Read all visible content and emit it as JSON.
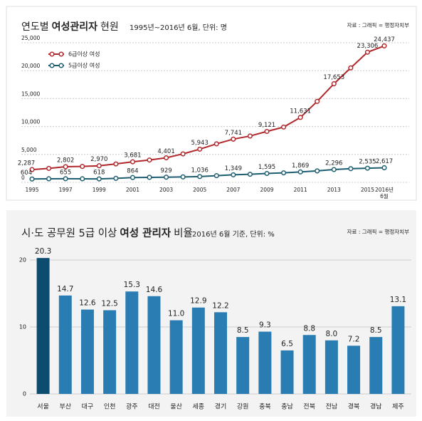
{
  "chart_data": [
    {
      "type": "line",
      "title": [
        "연도별",
        "여성관리자",
        "현원"
      ],
      "title_bold": [
        false,
        true,
        false
      ],
      "subtitle": "1995년~2016년 6월, 단위: 명",
      "source": "자료 : 그래픽 = 행정자치부",
      "categories": [
        "1995",
        null,
        "1997",
        null,
        "1999",
        null,
        "2001",
        null,
        "2003",
        null,
        "2005",
        null,
        "2007",
        null,
        "2009",
        null,
        "2011",
        null,
        "2013",
        null,
        "2015",
        "2016년 6월"
      ],
      "series": [
        {
          "name": "6급이상 여성",
          "color": "#b0282c",
          "values": [
            2287,
            2500,
            2802,
            2850,
            2970,
            3300,
            3681,
            4000,
            4401,
            5100,
            5943,
            6900,
            7741,
            8300,
            9121,
            9900,
            11631,
            14500,
            17653,
            20500,
            23306,
            24437
          ],
          "value_labels": [
            "2,287",
            null,
            "2,802",
            null,
            "2,970",
            null,
            "3,681",
            null,
            "4,401",
            null,
            "5,943",
            null,
            "7,741",
            null,
            "9,121",
            null,
            "11,631",
            null,
            "17,653",
            null,
            "23,306",
            "24,437"
          ]
        },
        {
          "name": "5급이상 여성",
          "color": "#1d5d70",
          "values": [
            604,
            640,
            655,
            640,
            618,
            720,
            864,
            900,
            929,
            980,
            1036,
            1200,
            1349,
            1450,
            1595,
            1700,
            1869,
            2050,
            2296,
            2450,
            2535,
            2617
          ],
          "value_labels": [
            "604",
            null,
            "655",
            null,
            "618",
            null,
            "864",
            null,
            "929",
            null,
            "1,036",
            null,
            "1,349",
            null,
            "1,595",
            null,
            "1,869",
            null,
            "2,296",
            null,
            "2,535",
            "2,617"
          ]
        }
      ],
      "ylim": [
        0,
        25000
      ],
      "yticks": [
        0,
        {
          "value": 5000,
          "label": "5,000"
        },
        {
          "value": 10000,
          "label": "10,000"
        },
        {
          "value": 15000,
          "label": "15,000"
        },
        {
          "value": 20000,
          "label": "20,000"
        },
        {
          "value": 25000,
          "label": "25,000"
        }
      ],
      "grid": true
    },
    {
      "type": "bar",
      "title": [
        "시·도 공무원 5급 이상",
        "여성 관리자",
        "비율"
      ],
      "title_bold": [
        false,
        true,
        false
      ],
      "subtitle": "2016년 6월 기준, 단위: %",
      "source": "자료 : 그래픽 = 행정자치부",
      "categories": [
        "서울",
        "부산",
        "대구",
        "인천",
        "광주",
        "대전",
        "울산",
        "세종",
        "경기",
        "강원",
        "충북",
        "충남",
        "전북",
        "전남",
        "경북",
        "경남",
        "제주"
      ],
      "values": [
        20.3,
        14.7,
        12.6,
        12.5,
        15.3,
        14.6,
        11.0,
        12.9,
        12.2,
        8.5,
        9.3,
        6.5,
        8.8,
        8.0,
        7.2,
        8.5,
        13.1
      ],
      "value_labels": [
        "20.3",
        "14.7",
        "12.6",
        "12.5",
        "15.3",
        "14.6",
        "11.0",
        "12.9",
        "12.2",
        "8.5",
        "9.3",
        "6.5",
        "8.8",
        "8.0",
        "7.2",
        "8.5",
        "13.1"
      ],
      "colors": [
        "#0d4c6e",
        "#2a7db3",
        "#2a7db3",
        "#2a7db3",
        "#2a7db3",
        "#2a7db3",
        "#2a7db3",
        "#2a7db3",
        "#2a7db3",
        "#2a7db3",
        "#2a7db3",
        "#2a7db3",
        "#2a7db3",
        "#2a7db3",
        "#2a7db3",
        "#2a7db3",
        "#2a7db3"
      ],
      "ylim": [
        0,
        22
      ],
      "yticks": [
        0,
        10,
        20
      ],
      "grid": true
    }
  ]
}
